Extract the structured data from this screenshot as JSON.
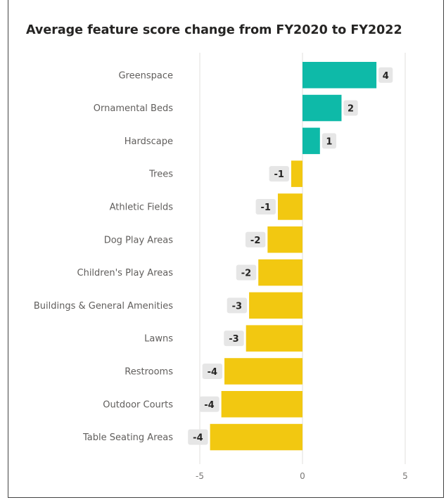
{
  "chart_data": {
    "type": "bar",
    "orientation": "horizontal",
    "title": "Average feature score change from FY2020 to FY2022",
    "categories": [
      "Greenspace",
      "Ornamental Beds",
      "Hardscape",
      "Trees",
      "Athletic Fields",
      "Dog Play Areas",
      "Children's Play Areas",
      "Buildings & General Amenities",
      "Lawns",
      "Restrooms",
      "Outdoor Courts",
      "Table Seating Areas"
    ],
    "values": [
      3.6,
      1.9,
      0.85,
      -0.55,
      -1.2,
      -1.7,
      -2.15,
      -2.6,
      -2.75,
      -3.8,
      -3.95,
      -4.5
    ],
    "data_labels": [
      "4",
      "2",
      "1",
      "-1",
      "-1",
      "-2",
      "-2",
      "-3",
      "-3",
      "-4",
      "-4",
      "-4"
    ],
    "x_ticks": [
      -5,
      0,
      5
    ],
    "x_tick_labels": [
      "-5",
      "0",
      "5"
    ],
    "xlim": [
      -5,
      5
    ],
    "xlabel": "",
    "ylabel": "",
    "grid": true,
    "legend": "none",
    "colors": {
      "positive": "#0ebaa8",
      "negative": "#f2c811",
      "gridline": "#e1dfdd",
      "label_bg": "#e6e6e6",
      "text": "#252423"
    }
  }
}
